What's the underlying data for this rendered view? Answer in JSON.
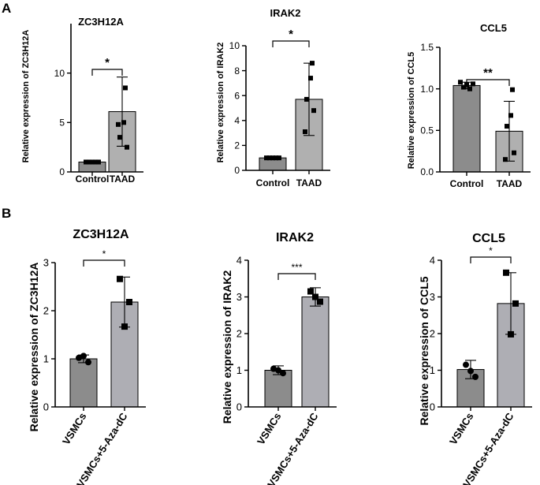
{
  "panel_labels": [
    "A",
    "B"
  ],
  "colors": {
    "control_bar": "#8c8c8c",
    "treated_bar_A": "#b0b0b0",
    "treated_bar_B": "#aeaeb4",
    "bar_edge": "#000000",
    "point": "#000000"
  },
  "chart_data": [
    {
      "panel": "A",
      "type": "bar",
      "title": "ZC3H12A",
      "ylabel": "Relative expression of ZC3H12A",
      "categories": [
        "Control",
        "TAAD"
      ],
      "yticks": [
        0,
        5,
        10
      ],
      "ytick_labels": [
        "0",
        "5",
        "10"
      ],
      "ylim": [
        0,
        15
      ],
      "series": [
        {
          "name": "Relative expression",
          "values": [
            1.0,
            6.1
          ],
          "sd": [
            0.05,
            3.5
          ]
        }
      ],
      "points": [
        [
          1.0,
          1.0,
          1.0,
          1.0,
          1.0
        ],
        [
          8.5,
          5.0,
          3.5,
          2.5,
          4.8
        ]
      ],
      "point_shape": "square",
      "significance": "*"
    },
    {
      "panel": "A",
      "type": "bar",
      "title": "IRAK2",
      "ylabel": "Relative expression of IRAK2",
      "categories": [
        "Control",
        "TAAD"
      ],
      "yticks": [
        0,
        2,
        4,
        6,
        8,
        10
      ],
      "ytick_labels": [
        "0",
        "2",
        "4",
        "6",
        "8",
        "10"
      ],
      "ylim": [
        0,
        10
      ],
      "series": [
        {
          "name": "Relative expression",
          "values": [
            1.0,
            5.7
          ],
          "sd": [
            0.05,
            2.9
          ]
        }
      ],
      "points": [
        [
          1.0,
          1.0,
          1.0,
          1.0,
          1.0
        ],
        [
          8.6,
          7.4,
          5.7,
          4.8,
          3.1
        ]
      ],
      "point_shape": "square",
      "significance": "*"
    },
    {
      "panel": "A",
      "type": "bar",
      "title": "CCL5",
      "ylabel": "Relative expression of CCL5",
      "categories": [
        "Control",
        "TAAD"
      ],
      "yticks": [
        0,
        0.5,
        1.0,
        1.5
      ],
      "ytick_labels": [
        "0.0",
        "0.5",
        "1.0",
        "1.5"
      ],
      "ylim": [
        0,
        1.5
      ],
      "series": [
        {
          "name": "Relative expression",
          "values": [
            1.04,
            0.49
          ],
          "sd": [
            0.04,
            0.36
          ]
        }
      ],
      "points": [
        [
          1.08,
          1.02,
          1.05,
          1.0,
          1.06
        ],
        [
          0.99,
          0.68,
          0.55,
          0.23,
          0.15
        ]
      ],
      "point_shape": "square",
      "significance": "**"
    },
    {
      "panel": "B",
      "type": "bar",
      "title": "ZC3H12A",
      "ylabel": "Relative expression of ZC3H12A",
      "categories": [
        "VSMCs",
        "VSMCs+5-Aza-dC"
      ],
      "yticks": [
        0,
        1,
        2,
        3
      ],
      "ytick_labels": [
        "0",
        "1",
        "2",
        "3"
      ],
      "ylim": [
        0,
        3
      ],
      "series": [
        {
          "name": "Relative expression",
          "values": [
            1.0,
            2.18
          ],
          "sd": [
            0.08,
            0.52
          ]
        }
      ],
      "points": [
        [
          1.02,
          0.93,
          1.06
        ],
        [
          2.66,
          2.18,
          1.67
        ]
      ],
      "point_shape": "mixed",
      "significance": "*"
    },
    {
      "panel": "B",
      "type": "bar",
      "title": "IRAK2",
      "ylabel": "Relative expression of IRAK2",
      "categories": [
        "VSMCs",
        "VSMCs+5-Aza-dC"
      ],
      "yticks": [
        0,
        1,
        2,
        3,
        4
      ],
      "ytick_labels": [
        "0",
        "1",
        "2",
        "3",
        "4"
      ],
      "ylim": [
        0,
        4
      ],
      "series": [
        {
          "name": "Relative expression",
          "values": [
            1.0,
            3.0
          ],
          "sd": [
            0.12,
            0.25
          ]
        }
      ],
      "points": [
        [
          1.04,
          0.92,
          1.0
        ],
        [
          3.15,
          2.87,
          3.0
        ]
      ],
      "point_shape": "mixed",
      "significance": "***"
    },
    {
      "panel": "B",
      "type": "bar",
      "title": "CCL5",
      "ylabel": "Relative expression of CCL5",
      "categories": [
        "VSMCs",
        "VSMCs+5-Aza-dC"
      ],
      "yticks": [
        0,
        1,
        2,
        3,
        4
      ],
      "ytick_labels": [
        "0",
        "1",
        "2",
        "3",
        "4"
      ],
      "ylim": [
        0,
        4
      ],
      "series": [
        {
          "name": "Relative expression",
          "values": [
            1.02,
            2.82
          ],
          "sd": [
            0.25,
            0.84
          ]
        }
      ],
      "points": [
        [
          1.15,
          0.82,
          0.98
        ],
        [
          3.66,
          2.82,
          1.98
        ]
      ],
      "point_shape": "mixed",
      "significance": "*"
    }
  ]
}
